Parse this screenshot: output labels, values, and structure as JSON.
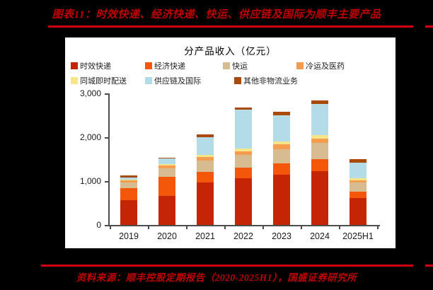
{
  "page_background": "#000000",
  "accent": {
    "heading_text_color": "#C00000",
    "rule_color": "#D0000C",
    "panel_background": "#FFFFFF",
    "axis_color": "#4d4d4d"
  },
  "header": {
    "title": "图表11：时效快递、经济快递、快运、供应链及国际为顺丰主要产品"
  },
  "footer": {
    "source": "资料来源：顺丰控股定期报告（2020-2025H1），国盛证券研究所"
  },
  "chart_data": {
    "type": "bar",
    "stacked": true,
    "title": "分产品收入（亿元）",
    "categories": [
      "2019",
      "2020",
      "2021",
      "2022",
      "2023",
      "2024",
      "2025H1"
    ],
    "series": [
      {
        "name": "时效快递",
        "color": "#C42605",
        "values": [
          565,
          664,
          962,
          1058,
          1146,
          1222,
          617
        ]
      },
      {
        "name": "经济快递",
        "color": "#F4560A",
        "values": [
          269,
          441,
          253,
          256,
          256,
          273,
          145
        ]
      },
      {
        "name": "快运",
        "color": "#D7BC92",
        "values": [
          127,
          185,
          260,
          281,
          331,
          370,
          200
        ]
      },
      {
        "name": "冷运及医药",
        "color": "#F49C50",
        "values": [
          51,
          65,
          78,
          86,
          103,
          110,
          62
        ]
      },
      {
        "name": "同城即时配送",
        "color": "#F5E488",
        "values": [
          20,
          31,
          50,
          65,
          72,
          80,
          42
        ]
      },
      {
        "name": "供应链及国际",
        "color": "#B3DCE6",
        "values": [
          55,
          130,
          392,
          879,
          600,
          705,
          360
        ]
      },
      {
        "name": "其他非物流业务",
        "color": "#A94A0B",
        "values": [
          36,
          24,
          77,
          51,
          77,
          84,
          70
        ]
      }
    ],
    "totals": [
      1123,
      1540,
      2072,
      2676,
      2585,
      2844,
      1496
    ],
    "ylim": [
      0,
      3000
    ],
    "yticks": [
      {
        "value": 0,
        "label": "0"
      },
      {
        "value": 1000,
        "label": "1,000"
      },
      {
        "value": 2000,
        "label": "2,000"
      },
      {
        "value": 3000,
        "label": "3,000"
      }
    ],
    "legend_position": "top",
    "legend_rows": [
      [
        0,
        1,
        2,
        3
      ],
      [
        4,
        5,
        6
      ]
    ],
    "grid": false
  }
}
